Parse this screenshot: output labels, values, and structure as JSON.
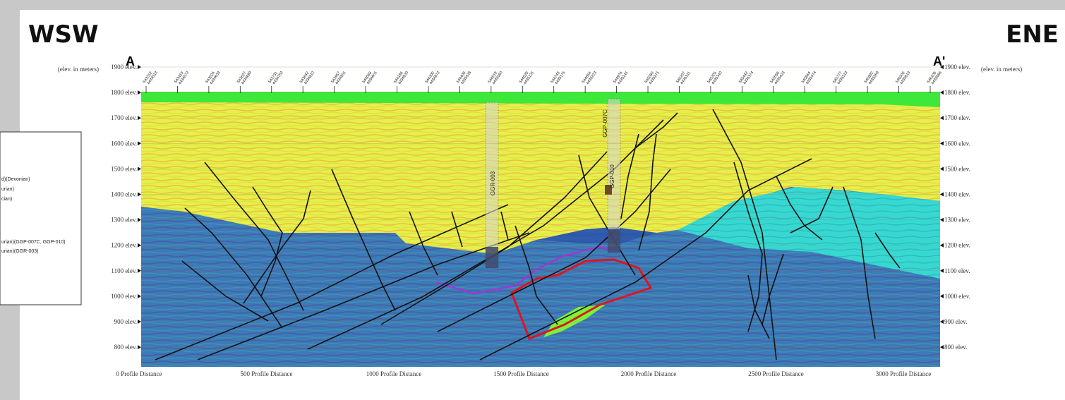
{
  "header": {
    "left": "WSW",
    "right": "ENE"
  },
  "section": {
    "start": "A",
    "end": "A'",
    "left_unit": "(elev. in meters)",
    "right_unit": "(elev. in meters)",
    "elevations": [
      "1900 elev.",
      "1800 elev.",
      "1700 elev.",
      "1600 elev.",
      "1500 elev.",
      "1400 elev.",
      "1300 elev.",
      "1200 elev.",
      "1100 elev.",
      "1000 elev.",
      "900 elev.",
      "800 elev."
    ],
    "distances": [
      "0 Profile Distance",
      "500 Profile Distance",
      "1000 Profile Distance",
      "1500 Profile Distance",
      "2000 Profile Distance",
      "2500 Profile Distance",
      "3000 Profile Distance"
    ],
    "stations": [
      {
        "easting": "543312",
        "northing": "4434513"
      },
      {
        "easting": "543419",
        "northing": "4434572"
      },
      {
        "easting": "543524",
        "northing": "4434633"
      },
      {
        "easting": "543627",
        "northing": "4434699"
      },
      {
        "easting": "543731",
        "northing": "4434762"
      },
      {
        "easting": "543842",
        "northing": "4434812"
      },
      {
        "easting": "543957",
        "northing": "4434851"
      },
      {
        "easting": "544068",
        "northing": "4434901"
      },
      {
        "easting": "544186",
        "northing": "4434930"
      },
      {
        "easting": "544300",
        "northing": "4434972"
      },
      {
        "easting": "544409",
        "northing": "4435028"
      },
      {
        "easting": "544519",
        "northing": "4435080"
      },
      {
        "easting": "544629",
        "northing": "4435131"
      },
      {
        "easting": "544743",
        "northing": "4435175"
      },
      {
        "easting": "544854",
        "northing": "4435223"
      },
      {
        "easting": "544974",
        "northing": "4435241"
      },
      {
        "easting": "545080",
        "northing": "4435271"
      },
      {
        "easting": "545207",
        "northing": "4435311"
      },
      {
        "easting": "545325",
        "northing": "4435342"
      },
      {
        "easting": "545442",
        "northing": "4435374"
      },
      {
        "easting": "545556",
        "northing": "4435423"
      },
      {
        "easting": "545664",
        "northing": "4435474"
      },
      {
        "easting": "545777",
        "northing": "4435519"
      },
      {
        "easting": "545892",
        "northing": "4435559"
      },
      {
        "easting": "546000",
        "northing": "4435613"
      },
      {
        "easting": "546108",
        "northing": "4435666"
      }
    ],
    "wells": [
      "GGR-003",
      "GGP-007C",
      "GGP-010"
    ]
  },
  "legend": {
    "items": [
      "d)(Devonian)",
      "urian)",
      "cian)",
      "urian)(GGP-007C, GGP-010)",
      "urian)(GGR-003)"
    ]
  }
}
